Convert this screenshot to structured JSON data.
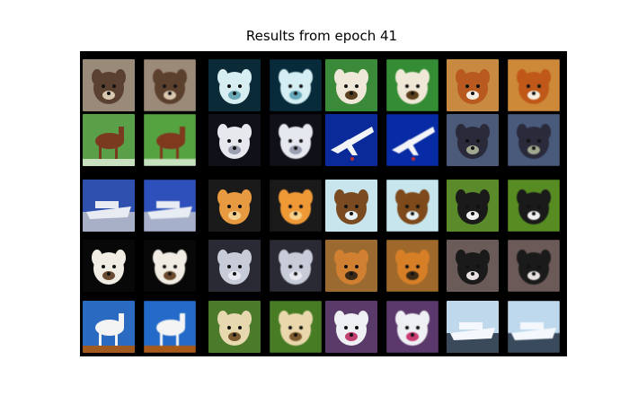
{
  "figure": {
    "title": "Results from epoch 41",
    "background": "#000000"
  },
  "grid": {
    "rows": 5,
    "pairs_per_row": 4,
    "images_per_pair": 2,
    "description_of_pairs": "each pair shows an original image and its reconstruction side by side",
    "cells": [
      [
        {
          "subject": "cat",
          "bg": "#9a8a7a",
          "fg": "#5a4030",
          "accent": "#d8c8b0"
        },
        {
          "subject": "dog-silhouette",
          "bg": "#0a2a38",
          "fg": "#d6eef2",
          "accent": "#6aa8b8"
        },
        {
          "subject": "dog-on-grass",
          "bg": "#3a8a3a",
          "fg": "#efe8d8",
          "accent": "#5a4020"
        },
        {
          "subject": "cavalier-dog",
          "bg": "#c88a40",
          "fg": "#b85a20",
          "accent": "#f4ece0"
        }
      ],
      [
        {
          "subject": "horse",
          "bg": "#5aa048",
          "fg": "#7a3a20",
          "accent": "#c8e0c0"
        },
        {
          "subject": "white-dog",
          "bg": "#101018",
          "fg": "#e6e8ee",
          "accent": "#9aa0b0"
        },
        {
          "subject": "airplane",
          "bg": "#0a2a9a",
          "fg": "#f2f4f8",
          "accent": "#c03030"
        },
        {
          "subject": "animal-in-brush",
          "bg": "#4a5a78",
          "fg": "#2a2a3a",
          "accent": "#a0a890"
        }
      ],
      [
        {
          "subject": "ship",
          "bg": "#3050b0",
          "fg": "#e8ecf2",
          "accent": "#a8b0c8"
        },
        {
          "subject": "orange-dog",
          "bg": "#1a1a1a",
          "fg": "#e89a40",
          "accent": "#f4d090"
        },
        {
          "subject": "dog-on-snow",
          "bg": "#c8e4ec",
          "fg": "#7a4a20",
          "accent": "#e8f2f6"
        },
        {
          "subject": "dog-on-grass-2",
          "bg": "#5a8a2a",
          "fg": "#1a1a1a",
          "accent": "#f0f0f0"
        }
      ],
      [
        {
          "subject": "dog-dark",
          "bg": "#080808",
          "fg": "#f0ece4",
          "accent": "#6a4a30"
        },
        {
          "subject": "gray-dog",
          "bg": "#2a2a34",
          "fg": "#c8ccd8",
          "accent": "#e8e8f0"
        },
        {
          "subject": "cat-on-floor",
          "bg": "#9a6a30",
          "fg": "#d08030",
          "accent": "#3a2a18"
        },
        {
          "subject": "dog-on-road",
          "bg": "#6a5a58",
          "fg": "#1a1a1a",
          "accent": "#e8e0e0"
        }
      ],
      [
        {
          "subject": "horse-rider",
          "bg": "#2a6ac0",
          "fg": "#f4f4f4",
          "accent": "#a05a20"
        },
        {
          "subject": "pekingese",
          "bg": "#4a7a2a",
          "fg": "#e8d8b0",
          "accent": "#7a5a30"
        },
        {
          "subject": "husky",
          "bg": "#5a3a68",
          "fg": "#eef0f4",
          "accent": "#c04070"
        },
        {
          "subject": "ship-on-sea",
          "bg": "#c0d8ec",
          "fg": "#f4f8fc",
          "accent": "#3a4a5a"
        }
      ]
    ]
  }
}
